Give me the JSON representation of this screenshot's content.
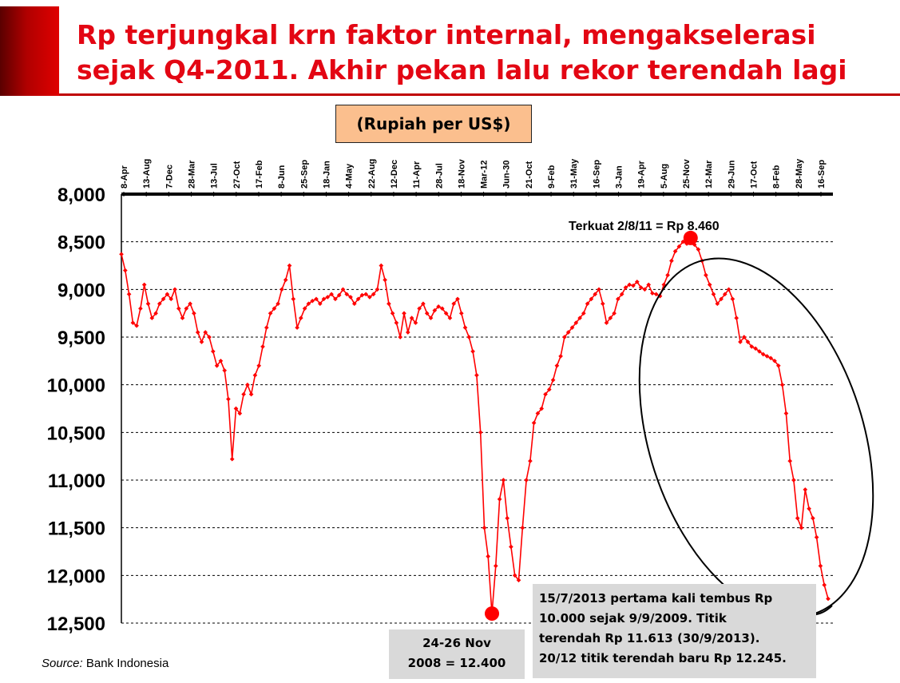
{
  "title": "Rp terjungkal krn faktor internal, mengakselerasi sejak Q4-2011. Akhir pekan lalu rekor terendah lagi",
  "unit_label": "(Rupiah per US$)",
  "source_prefix": "Source:",
  "source_name": "Bank Indonesia",
  "colors": {
    "series": "#ff0000",
    "title": "#e30613",
    "accent_bar": "#c00000",
    "unit_box": "#fbbf8e",
    "note_box": "#d9d9d9"
  },
  "annotations": {
    "max_label": "Terkuat 2/8/11 = Rp 8.460",
    "min_line1": "24-26 Nov",
    "min_line2": "2008 = 12.400",
    "info_line1": "15/7/2013 pertama kali tembus Rp",
    "info_line2": "10.000 sejak 9/9/2009. Titik",
    "info_line3": "terendah Rp 11.613 (30/9/2013).",
    "info_line4": "20/12 titik terendah baru Rp 12.245."
  },
  "chart_data": {
    "type": "line",
    "ylabel": "",
    "y_inverted": true,
    "ylim": [
      8000,
      12500
    ],
    "yticks": [
      8000,
      8500,
      9000,
      9500,
      10000,
      10500,
      11000,
      11500,
      12000,
      12500
    ],
    "ytick_labels": [
      "8,000",
      "8,500",
      "9,000",
      "9,500",
      "10,000",
      "10,500",
      "11,000",
      "11,500",
      "12,000",
      "12,500"
    ],
    "x_tick_labels": [
      "8-Apr",
      "13-Aug",
      "7-Dec",
      "28-Mar",
      "13-Jul",
      "27-Oct",
      "17-Feb",
      "8-Jun",
      "25-Sep",
      "18-Jan",
      "4-May",
      "22-Aug",
      "12-Dec",
      "11-Apr",
      "28-Jul",
      "18-Nov",
      "Mar-12",
      "Jun-30",
      "21-Oct",
      "9-Feb",
      "31-May",
      "16-Sep",
      "3-Jan",
      "19-Apr",
      "5-Aug",
      "25-Nov",
      "12-Mar",
      "29-Jun",
      "17-Oct",
      "8-Feb",
      "28-May",
      "16-Sep"
    ],
    "grid": "horizontal dashed",
    "legend": "none",
    "series": [
      {
        "values": [
          8630,
          8800,
          9050,
          9350,
          9380,
          9200,
          8950,
          9150,
          9300,
          9250,
          9150,
          9100,
          9050,
          9100,
          9000,
          9200,
          9300,
          9200,
          9150,
          9250,
          9450,
          9550,
          9450,
          9500,
          9650,
          9800,
          9750,
          9850,
          10150,
          10780,
          10250,
          10300,
          10100,
          10000,
          10100,
          9900,
          9800,
          9600,
          9400,
          9250,
          9200,
          9150,
          9000,
          8900,
          8750,
          9100,
          9400,
          9300,
          9200,
          9150,
          9120,
          9100,
          9150,
          9100,
          9080,
          9050,
          9100,
          9060,
          9000,
          9050,
          9080,
          9150,
          9100,
          9060,
          9050,
          9080,
          9050,
          9000,
          8750,
          8900,
          9150,
          9250,
          9350,
          9500,
          9250,
          9450,
          9300,
          9350,
          9200,
          9150,
          9250,
          9300,
          9220,
          9180,
          9200,
          9250,
          9300,
          9150,
          9100,
          9250,
          9400,
          9500,
          9650,
          9900,
          10500,
          11500,
          11800,
          12400,
          11900,
          11200,
          11000,
          11400,
          11700,
          12000,
          12050,
          11500,
          11000,
          10800,
          10400,
          10300,
          10250,
          10100,
          10050,
          9950,
          9800,
          9700,
          9500,
          9450,
          9400,
          9350,
          9300,
          9250,
          9150,
          9100,
          9050,
          9000,
          9150,
          9350,
          9300,
          9250,
          9100,
          9050,
          8980,
          8950,
          8960,
          8920,
          8980,
          9000,
          8950,
          9040,
          9050,
          9070,
          8950,
          8850,
          8700,
          8600,
          8550,
          8500,
          8520,
          8460,
          8530,
          8580,
          8700,
          8850,
          8950,
          9050,
          9150,
          9100,
          9050,
          9000,
          9100,
          9300,
          9550,
          9500,
          9550,
          9600,
          9620,
          9650,
          9680,
          9700,
          9720,
          9750,
          9800,
          10000,
          10300,
          10800,
          11000,
          11400,
          11500,
          11100,
          11300,
          11400,
          11600,
          11900,
          12100,
          12245
        ]
      }
    ]
  }
}
